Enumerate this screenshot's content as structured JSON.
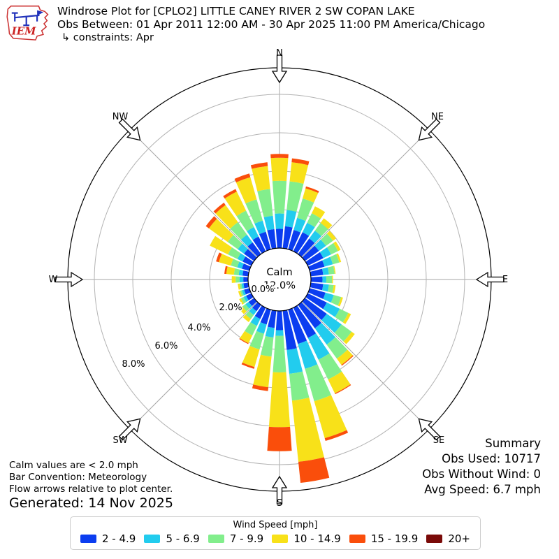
{
  "header": {
    "logo_text": "IEM",
    "title": "Windrose Plot for [CPLO2] LITTLE CANEY RIVER 2 SW COPAN LAKE",
    "subtitle": "Obs Between: 01 Apr 2011 12:00 AM - 30 Apr 2025 11:00 PM America/Chicago",
    "constraints": "↳ constraints: Apr"
  },
  "summary": {
    "heading": "Summary",
    "obs_used": "Obs Used: 10717",
    "obs_without_wind": "Obs Without Wind: 0",
    "avg_speed": "Avg Speed: 6.7 mph"
  },
  "footnotes": {
    "line1": "Calm values are < 2.0 mph",
    "line2": "Bar Convention: Meteorology",
    "line3": "Flow arrows relative to plot center.",
    "generated": "Generated: 14 Nov 2025"
  },
  "legend": {
    "title": "Wind Speed [mph]",
    "bins": [
      {
        "label": "2 - 4.9",
        "color": "#0b3df0"
      },
      {
        "label": "5 - 6.9",
        "color": "#22ccee"
      },
      {
        "label": "7 - 9.9",
        "color": "#82ee8c"
      },
      {
        "label": "10 - 14.9",
        "color": "#f8e119"
      },
      {
        "label": "15 - 19.9",
        "color": "#fa4e0b"
      },
      {
        "label": "20+",
        "color": "#7a0a08"
      }
    ]
  },
  "chart_data": {
    "type": "bar",
    "subtype": "windrose-polar-stacked",
    "title": "Windrose Plot for [CPLO2] LITTLE CANEY RIVER 2 SW COPAN LAKE",
    "calm": {
      "label": "Calm",
      "value_label": "12.0%",
      "value_pct": 12.0
    },
    "compass_labels": [
      "N",
      "NE",
      "E",
      "SE",
      "S",
      "SW",
      "W",
      "NW"
    ],
    "ring_labels": [
      "0.0%",
      "2.0%",
      "4.0%",
      "6.0%",
      "8.0%"
    ],
    "ring_values_pct": [
      0,
      2,
      4,
      6,
      8
    ],
    "axis_max_pct": 9.4,
    "grid": true,
    "legend_position": "bottom",
    "speed_bins_mph": [
      "2 - 4.9",
      "5 - 6.9",
      "7 - 9.9",
      "10 - 14.9",
      "15 - 19.9",
      "20+"
    ],
    "bin_colors": [
      "#0b3df0",
      "#22ccee",
      "#82ee8c",
      "#f8e119",
      "#fa4e0b",
      "#7a0a08"
    ],
    "direction_step_deg": 10,
    "directions_deg": [
      0,
      10,
      20,
      30,
      40,
      50,
      60,
      70,
      80,
      90,
      100,
      110,
      120,
      130,
      140,
      150,
      160,
      170,
      180,
      190,
      200,
      210,
      220,
      230,
      240,
      250,
      260,
      270,
      280,
      290,
      300,
      310,
      320,
      330,
      340,
      350
    ],
    "series_note": "frequency % per direction for each speed bin, estimated from plot",
    "frequencies_pct": [
      [
        1.0,
        0.8,
        1.7,
        1.2,
        0.2,
        0
      ],
      [
        1.15,
        0.85,
        1.5,
        1.0,
        0.2,
        0
      ],
      [
        1.05,
        0.65,
        1.05,
        0.55,
        0.1,
        0
      ],
      [
        1.1,
        0.55,
        0.55,
        0.4,
        0,
        0
      ],
      [
        1.0,
        0.5,
        0.5,
        0.3,
        0,
        0
      ],
      [
        0.9,
        0.45,
        0.45,
        0.2,
        0,
        0
      ],
      [
        0.9,
        0.45,
        0.4,
        0.15,
        0,
        0
      ],
      [
        0.8,
        0.45,
        0.35,
        0.1,
        0,
        0
      ],
      [
        0.65,
        0.3,
        0.3,
        0.05,
        0,
        0
      ],
      [
        0.6,
        0.2,
        0.3,
        0.05,
        0,
        0
      ],
      [
        0.65,
        0.3,
        0.25,
        0.1,
        0,
        0
      ],
      [
        0.85,
        0.45,
        0.4,
        0.1,
        0,
        0
      ],
      [
        1.1,
        0.75,
        0.5,
        0.15,
        0,
        0
      ],
      [
        1.4,
        0.95,
        0.65,
        0.2,
        0,
        0
      ],
      [
        1.5,
        1.05,
        0.9,
        0.4,
        0.05,
        0
      ],
      [
        1.75,
        1.25,
        1.15,
        0.8,
        0.05,
        0
      ],
      [
        1.85,
        1.35,
        1.75,
        2.0,
        0.15,
        0
      ],
      [
        2.05,
        1.25,
        1.4,
        3.2,
        1.1,
        0
      ],
      [
        1.0,
        0.3,
        1.9,
        2.85,
        1.25,
        0
      ],
      [
        0.9,
        0.5,
        1.0,
        1.6,
        0.2,
        0
      ],
      [
        0.8,
        0.5,
        0.85,
        0.95,
        0.1,
        0
      ],
      [
        0.65,
        0.4,
        0.55,
        0.45,
        0.05,
        0
      ],
      [
        0.4,
        0.25,
        0.25,
        0.2,
        0,
        0
      ],
      [
        0.35,
        0.2,
        0.2,
        0.2,
        0,
        0
      ],
      [
        0.3,
        0.15,
        0.15,
        0.1,
        0,
        0
      ],
      [
        0.28,
        0.12,
        0.1,
        0.1,
        0,
        0
      ],
      [
        0.25,
        0.1,
        0.1,
        0.1,
        0,
        0
      ],
      [
        0.25,
        0.2,
        0.2,
        0.2,
        0,
        0
      ],
      [
        0.3,
        0.2,
        0.25,
        0.4,
        0.1,
        0
      ],
      [
        0.4,
        0.25,
        0.35,
        0.65,
        0.15,
        0
      ],
      [
        0.5,
        0.3,
        0.55,
        1.05,
        0,
        0
      ],
      [
        0.65,
        0.4,
        0.65,
        1.2,
        0.2,
        0
      ],
      [
        0.75,
        0.5,
        0.8,
        1.1,
        0.15,
        0
      ],
      [
        0.85,
        0.55,
        0.95,
        1.1,
        0.15,
        0
      ],
      [
        0.95,
        0.6,
        1.15,
        1.2,
        0.2,
        0
      ],
      [
        1.0,
        0.7,
        1.4,
        1.2,
        0.2,
        0
      ]
    ]
  }
}
